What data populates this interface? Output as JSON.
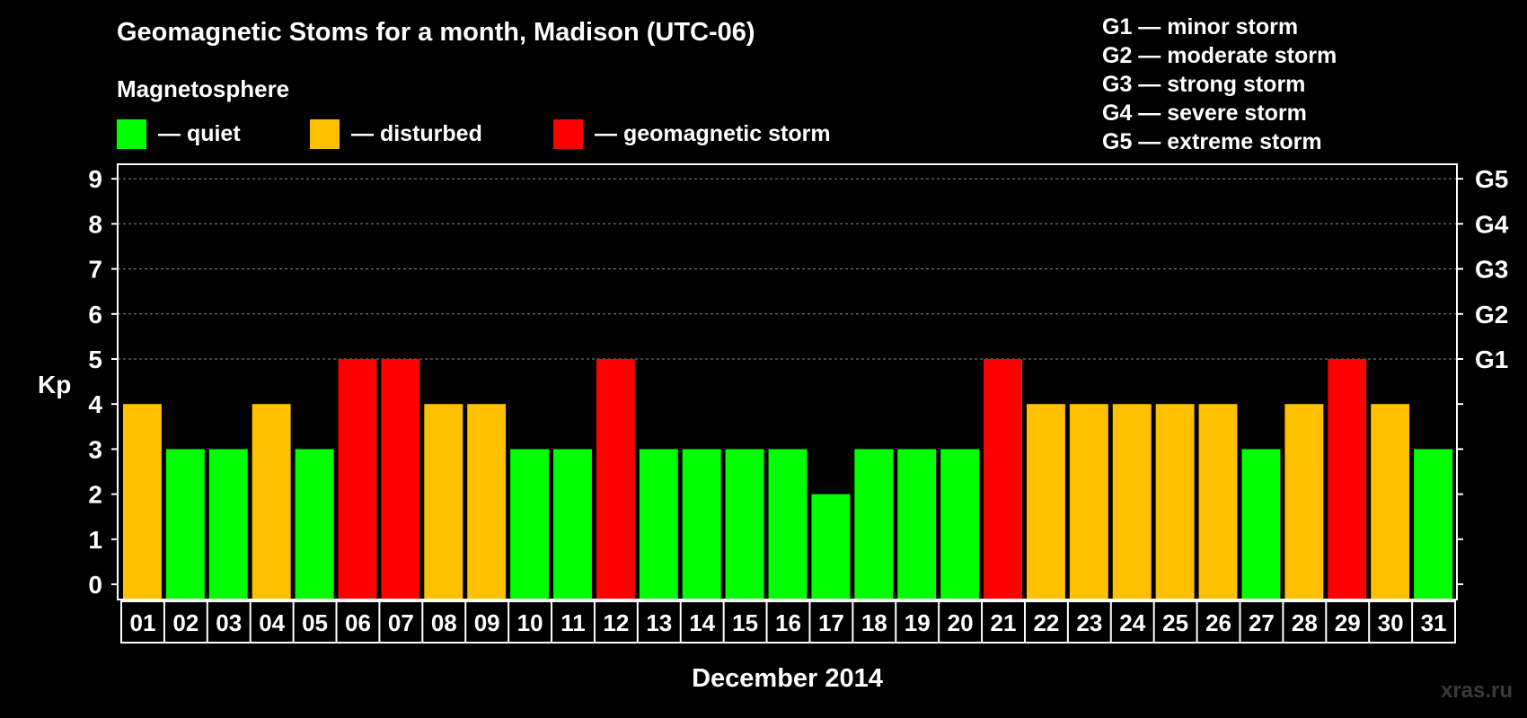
{
  "title": "Geomagnetic Stoms for a month, Madison (UTC-06)",
  "magnetosphere": {
    "title": "Magnetosphere",
    "legend": [
      {
        "label": "— quiet",
        "color": "#00ff00"
      },
      {
        "label": "— disturbed",
        "color": "#ffc000"
      },
      {
        "label": "— geomagnetic storm",
        "color": "#ff0000"
      }
    ]
  },
  "g_legend": [
    "G1 — minor storm",
    "G2 — moderate storm",
    "G3 — strong storm",
    "G4 — severe storm",
    "G5 — extreme storm"
  ],
  "watermark": "xras.ru",
  "colors": {
    "background": "#000000",
    "quiet": "#00ff00",
    "disturbed": "#ffc000",
    "storm": "#ff0000",
    "grid": "#888888"
  },
  "chart_data": {
    "type": "bar",
    "xlabel": "December 2014",
    "ylabel": "Kp",
    "ylim": [
      0,
      9
    ],
    "yticks": [
      0,
      1,
      2,
      3,
      4,
      5,
      6,
      7,
      8,
      9
    ],
    "right_axis_labels": [
      {
        "value": 5,
        "label": "G1"
      },
      {
        "value": 6,
        "label": "G2"
      },
      {
        "value": 7,
        "label": "G3"
      },
      {
        "value": 8,
        "label": "G4"
      },
      {
        "value": 9,
        "label": "G5"
      }
    ],
    "grid": "dashed horizontal at 5-9",
    "categories": [
      "01",
      "02",
      "03",
      "04",
      "05",
      "06",
      "07",
      "08",
      "09",
      "10",
      "11",
      "12",
      "13",
      "14",
      "15",
      "16",
      "17",
      "18",
      "19",
      "20",
      "21",
      "22",
      "23",
      "24",
      "25",
      "26",
      "27",
      "28",
      "29",
      "30",
      "31"
    ],
    "values": [
      4,
      3,
      3,
      4,
      3,
      5,
      5,
      4,
      4,
      3,
      3,
      5,
      3,
      3,
      3,
      3,
      2,
      3,
      3,
      3,
      5,
      4,
      4,
      4,
      4,
      4,
      3,
      4,
      5,
      4,
      3
    ]
  }
}
